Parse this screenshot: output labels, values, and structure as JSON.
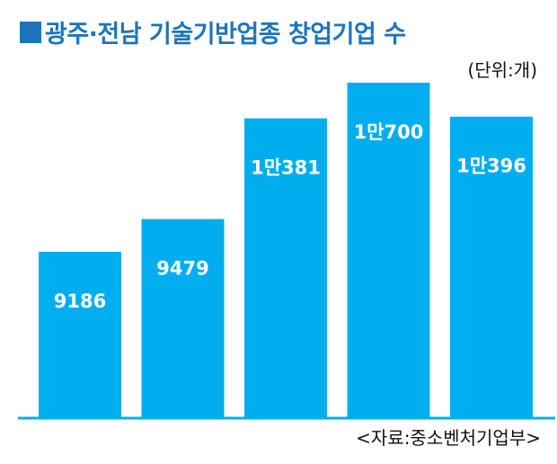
{
  "title": "광주·전남 기술기반업종 창업기업 수",
  "title_marker": "■",
  "unit_label": "(단위:개)",
  "source_label": "<자료:중소벤처기업부>",
  "colors": {
    "bar": "#00AEEF",
    "title": "#1C75BC",
    "baseline": "#00AEEF"
  },
  "chart_data": {
    "type": "bar",
    "title": "광주·전남 기술기반업종 창업기업 수",
    "values": [
      9186,
      9479,
      10381,
      10700,
      10396
    ],
    "data_labels": [
      "9186",
      "9479",
      "1만381",
      "1만700",
      "1만396"
    ],
    "unit": "개"
  }
}
